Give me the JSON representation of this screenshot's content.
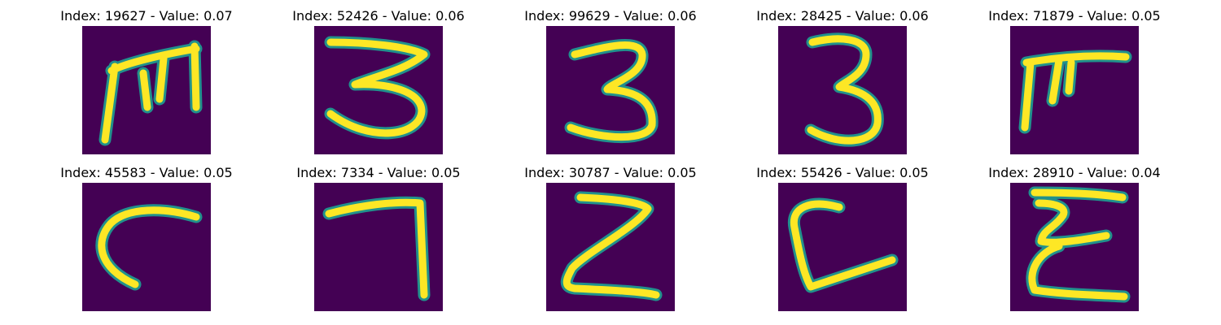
{
  "panels": [
    {
      "index": "19627",
      "value": "0.07",
      "glyph": "handwritten-m-like-character"
    },
    {
      "index": "52426",
      "value": "0.06",
      "glyph": "handwritten-digit-3"
    },
    {
      "index": "99629",
      "value": "0.06",
      "glyph": "handwritten-digit-3"
    },
    {
      "index": "28425",
      "value": "0.06",
      "glyph": "handwritten-digit-3"
    },
    {
      "index": "71879",
      "value": "0.05",
      "glyph": "handwritten-pi-like-character"
    },
    {
      "index": "45583",
      "value": "0.05",
      "glyph": "handwritten-c-like-curve"
    },
    {
      "index": "7334",
      "value": "0.05",
      "glyph": "handwritten-digit-7"
    },
    {
      "index": "30787",
      "value": "0.05",
      "glyph": "handwritten-z-like-character"
    },
    {
      "index": "55426",
      "value": "0.05",
      "glyph": "handwritten-l-like-character"
    },
    {
      "index": "28910",
      "value": "0.04",
      "glyph": "handwritten-e-like-character"
    }
  ],
  "colors": {
    "background": "#440154",
    "stroke_core": "#fde725",
    "stroke_edge": "#21918c"
  }
}
